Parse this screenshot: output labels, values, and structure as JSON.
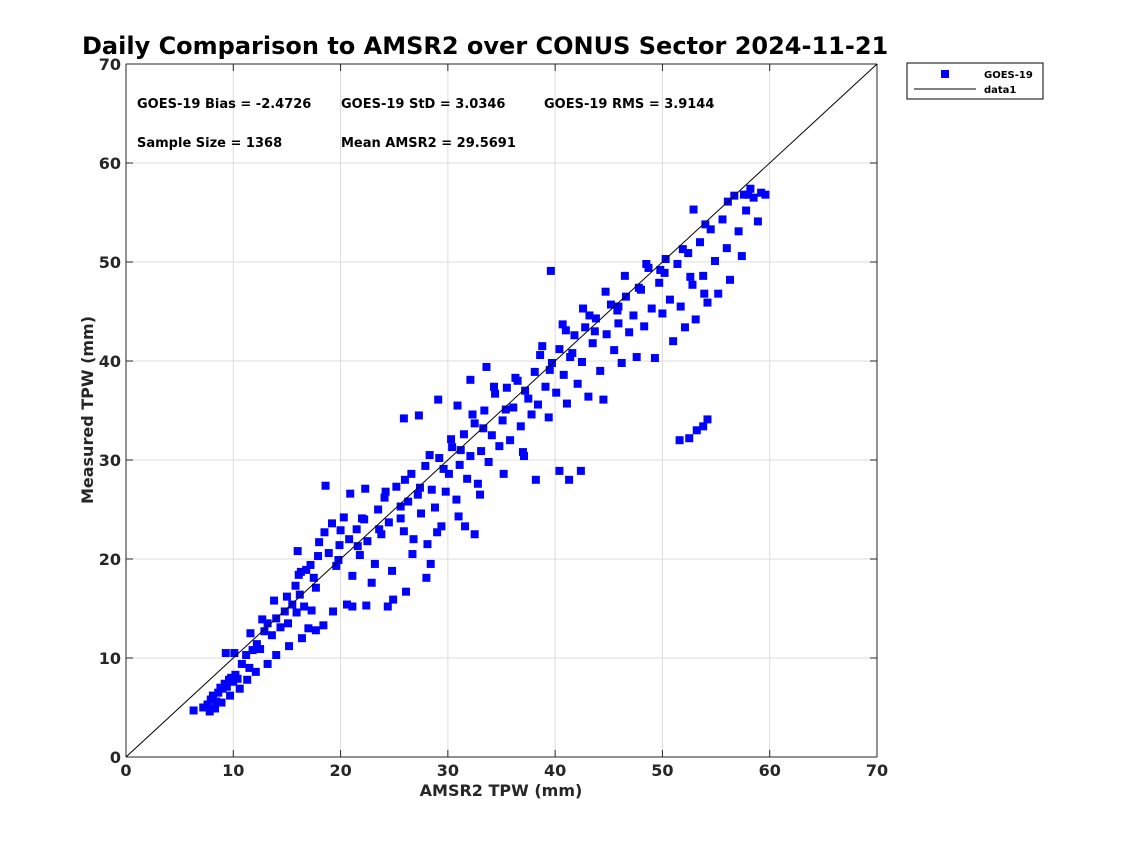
{
  "chart_data": {
    "type": "scatter",
    "title": "Daily Comparison to AMSR2 over CONUS Sector 2024-11-21",
    "xlabel": "AMSR2 TPW (mm)",
    "ylabel": "Measured TPW (mm)",
    "xlim": [
      0,
      70
    ],
    "ylim": [
      0,
      70
    ],
    "xticks": [
      "0",
      "10",
      "20",
      "30",
      "40",
      "50",
      "60",
      "70"
    ],
    "yticks": [
      "0",
      "10",
      "20",
      "30",
      "40",
      "50",
      "60",
      "70"
    ],
    "grid": true,
    "legend_position": "outside-top-right",
    "stats": {
      "bias": "GOES-19 Bias = -2.4726",
      "std": "GOES-19 StD = 3.0346",
      "rms": "GOES-19 RMS = 3.9144",
      "sample_size": "Sample Size = 1368",
      "mean": "Mean AMSR2 = 29.5691"
    },
    "series": [
      {
        "name": "GOES-19",
        "color": "#0000ff",
        "marker": "square",
        "points": [
          [
            6.3,
            4.7
          ],
          [
            7.2,
            5.0
          ],
          [
            7.6,
            5.3
          ],
          [
            7.9,
            5.8
          ],
          [
            8.1,
            6.2
          ],
          [
            8.4,
            5.6
          ],
          [
            8.6,
            6.5
          ],
          [
            8.8,
            7.0
          ],
          [
            9.0,
            6.9
          ],
          [
            9.2,
            7.4
          ],
          [
            9.4,
            7.1
          ],
          [
            9.6,
            7.8
          ],
          [
            9.8,
            8.0
          ],
          [
            10.0,
            7.6
          ],
          [
            10.2,
            8.3
          ],
          [
            10.4,
            7.9
          ],
          [
            9.3,
            10.5
          ],
          [
            10.1,
            10.5
          ],
          [
            10.8,
            9.4
          ],
          [
            11.2,
            10.3
          ],
          [
            11.5,
            9.0
          ],
          [
            11.8,
            10.8
          ],
          [
            12.2,
            11.4
          ],
          [
            12.5,
            10.9
          ],
          [
            12.9,
            12.7
          ],
          [
            13.2,
            13.5
          ],
          [
            13.6,
            12.3
          ],
          [
            14.0,
            14.0
          ],
          [
            14.4,
            13.1
          ],
          [
            14.8,
            14.7
          ],
          [
            15.1,
            13.5
          ],
          [
            15.5,
            15.4
          ],
          [
            15.9,
            14.6
          ],
          [
            16.2,
            16.4
          ],
          [
            16.6,
            15.2
          ],
          [
            17.0,
            13.0
          ],
          [
            17.3,
            14.8
          ],
          [
            16.0,
            20.8
          ],
          [
            16.3,
            18.7
          ],
          [
            16.8,
            18.9
          ],
          [
            17.2,
            19.4
          ],
          [
            17.7,
            17.1
          ],
          [
            18.0,
            21.7
          ],
          [
            18.5,
            22.7
          ],
          [
            18.6,
            27.4
          ],
          [
            18.9,
            20.6
          ],
          [
            19.2,
            23.6
          ],
          [
            19.6,
            19.3
          ],
          [
            19.9,
            21.4
          ],
          [
            20.3,
            24.2
          ],
          [
            20.6,
            15.4
          ],
          [
            20.8,
            22.0
          ],
          [
            21.1,
            18.3
          ],
          [
            21.5,
            23.0
          ],
          [
            21.8,
            20.4
          ],
          [
            22.2,
            24.0
          ],
          [
            22.5,
            21.8
          ],
          [
            22.9,
            17.6
          ],
          [
            23.2,
            19.5
          ],
          [
            23.5,
            25.0
          ],
          [
            23.8,
            22.5
          ],
          [
            24.2,
            26.8
          ],
          [
            24.5,
            23.7
          ],
          [
            24.9,
            15.9
          ],
          [
            25.2,
            27.3
          ],
          [
            25.6,
            24.1
          ],
          [
            25.9,
            22.8
          ],
          [
            26.3,
            25.8
          ],
          [
            26.6,
            28.6
          ],
          [
            26.8,
            22.0
          ],
          [
            27.2,
            26.5
          ],
          [
            27.5,
            24.6
          ],
          [
            27.9,
            29.4
          ],
          [
            28.1,
            21.5
          ],
          [
            28.5,
            27.0
          ],
          [
            28.8,
            25.2
          ],
          [
            29.2,
            30.2
          ],
          [
            29.4,
            23.3
          ],
          [
            29.8,
            26.8
          ],
          [
            30.1,
            28.6
          ],
          [
            30.4,
            31.3
          ],
          [
            30.8,
            26.0
          ],
          [
            31.1,
            29.5
          ],
          [
            31.5,
            32.6
          ],
          [
            31.8,
            28.1
          ],
          [
            32.1,
            30.4
          ],
          [
            32.5,
            33.7
          ],
          [
            32.8,
            27.6
          ],
          [
            33.1,
            30.9
          ],
          [
            33.4,
            35.0
          ],
          [
            33.8,
            29.8
          ],
          [
            34.1,
            32.5
          ],
          [
            34.4,
            36.7
          ],
          [
            34.8,
            31.4
          ],
          [
            35.1,
            34.0
          ],
          [
            35.5,
            37.3
          ],
          [
            35.8,
            32.0
          ],
          [
            36.1,
            35.3
          ],
          [
            36.5,
            38.0
          ],
          [
            36.8,
            33.4
          ],
          [
            37.1,
            30.4
          ],
          [
            37.5,
            36.2
          ],
          [
            37.8,
            34.6
          ],
          [
            38.1,
            38.9
          ],
          [
            38.4,
            35.6
          ],
          [
            38.8,
            41.5
          ],
          [
            39.1,
            37.4
          ],
          [
            39.4,
            34.3
          ],
          [
            39.7,
            39.8
          ],
          [
            40.1,
            36.8
          ],
          [
            40.4,
            41.2
          ],
          [
            40.8,
            38.6
          ],
          [
            41.1,
            35.7
          ],
          [
            41.4,
            40.4
          ],
          [
            41.8,
            42.6
          ],
          [
            42.1,
            37.7
          ],
          [
            42.5,
            39.9
          ],
          [
            42.8,
            43.4
          ],
          [
            43.1,
            36.4
          ],
          [
            43.5,
            41.8
          ],
          [
            43.8,
            44.3
          ],
          [
            44.2,
            39.0
          ],
          [
            44.5,
            36.1
          ],
          [
            44.8,
            42.7
          ],
          [
            45.2,
            45.7
          ],
          [
            45.5,
            41.1
          ],
          [
            45.9,
            43.8
          ],
          [
            46.2,
            39.8
          ],
          [
            46.6,
            46.5
          ],
          [
            46.9,
            42.9
          ],
          [
            47.3,
            44.6
          ],
          [
            47.6,
            40.4
          ],
          [
            48.0,
            47.2
          ],
          [
            48.3,
            43.5
          ],
          [
            48.7,
            49.4
          ],
          [
            49.0,
            45.3
          ],
          [
            49.3,
            40.3
          ],
          [
            49.7,
            47.9
          ],
          [
            50.0,
            44.8
          ],
          [
            50.3,
            50.3
          ],
          [
            50.7,
            46.2
          ],
          [
            51.0,
            42.0
          ],
          [
            51.4,
            49.8
          ],
          [
            51.7,
            45.5
          ],
          [
            52.1,
            43.4
          ],
          [
            52.4,
            50.9
          ],
          [
            52.8,
            47.7
          ],
          [
            53.1,
            44.2
          ],
          [
            53.5,
            52.0
          ],
          [
            53.8,
            48.6
          ],
          [
            54.2,
            45.9
          ],
          [
            54.5,
            53.3
          ],
          [
            54.9,
            50.1
          ],
          [
            55.2,
            46.8
          ],
          [
            55.6,
            54.3
          ],
          [
            56.0,
            51.4
          ],
          [
            56.3,
            48.2
          ],
          [
            56.7,
            56.7
          ],
          [
            57.1,
            53.1
          ],
          [
            57.4,
            50.6
          ],
          [
            57.8,
            55.2
          ],
          [
            58.2,
            57.4
          ],
          [
            58.5,
            56.5
          ],
          [
            58.9,
            54.1
          ],
          [
            59.2,
            57.0
          ],
          [
            59.6,
            56.8
          ],
          [
            57.6,
            56.8
          ],
          [
            58.0,
            56.8
          ],
          [
            50.2,
            48.9
          ],
          [
            52.6,
            48.5
          ],
          [
            53.9,
            46.8
          ],
          [
            39.6,
            49.1
          ],
          [
            52.9,
            55.3
          ],
          [
            51.6,
            32.0
          ],
          [
            52.5,
            32.2
          ],
          [
            53.2,
            33.0
          ],
          [
            53.8,
            33.4
          ],
          [
            54.2,
            34.1
          ],
          [
            40.4,
            28.9
          ],
          [
            41.3,
            28.0
          ],
          [
            42.4,
            28.9
          ],
          [
            38.2,
            28.0
          ],
          [
            32.5,
            22.5
          ],
          [
            31.6,
            23.3
          ],
          [
            28.4,
            19.5
          ],
          [
            28.0,
            18.1
          ],
          [
            26.1,
            16.7
          ],
          [
            24.4,
            15.2
          ],
          [
            22.4,
            15.3
          ],
          [
            21.1,
            15.2
          ],
          [
            19.3,
            14.7
          ],
          [
            18.4,
            13.3
          ],
          [
            17.7,
            12.8
          ],
          [
            16.4,
            12.0
          ],
          [
            15.2,
            11.2
          ],
          [
            14.0,
            10.3
          ],
          [
            13.2,
            9.4
          ],
          [
            12.1,
            8.6
          ],
          [
            11.3,
            7.8
          ],
          [
            10.6,
            6.9
          ],
          [
            9.7,
            6.2
          ],
          [
            8.9,
            5.5
          ],
          [
            8.3,
            4.9
          ],
          [
            7.8,
            4.6
          ],
          [
            15.8,
            17.3
          ],
          [
            17.5,
            18.1
          ],
          [
            19.8,
            19.9
          ],
          [
            21.6,
            21.3
          ],
          [
            23.6,
            23.0
          ],
          [
            25.6,
            25.3
          ],
          [
            27.4,
            27.2
          ],
          [
            29.6,
            29.1
          ],
          [
            31.2,
            31.0
          ],
          [
            33.3,
            33.2
          ],
          [
            35.4,
            35.1
          ],
          [
            37.2,
            37.0
          ],
          [
            39.5,
            39.1
          ],
          [
            41.6,
            40.8
          ],
          [
            43.7,
            43.0
          ],
          [
            45.8,
            45.1
          ],
          [
            47.8,
            47.4
          ],
          [
            49.8,
            49.2
          ],
          [
            51.9,
            51.3
          ],
          [
            54.0,
            53.8
          ],
          [
            56.1,
            56.1
          ],
          [
            24.8,
            18.8
          ],
          [
            26.7,
            20.5
          ],
          [
            29.0,
            22.7
          ],
          [
            31.0,
            24.3
          ],
          [
            33.0,
            26.5
          ],
          [
            35.2,
            28.6
          ],
          [
            37.0,
            30.8
          ],
          [
            13.8,
            15.8
          ],
          [
            15.0,
            16.2
          ],
          [
            16.1,
            18.4
          ],
          [
            17.9,
            20.3
          ],
          [
            20.0,
            22.9
          ],
          [
            22.0,
            24.1
          ],
          [
            24.1,
            26.2
          ],
          [
            26.0,
            28.0
          ],
          [
            28.3,
            30.5
          ],
          [
            30.3,
            32.1
          ],
          [
            32.3,
            34.6
          ],
          [
            34.3,
            37.4
          ],
          [
            36.3,
            38.3
          ],
          [
            38.6,
            40.6
          ],
          [
            40.7,
            43.7
          ],
          [
            42.6,
            45.3
          ],
          [
            44.7,
            47.0
          ],
          [
            46.5,
            48.6
          ],
          [
            48.5,
            49.8
          ],
          [
            30.9,
            35.5
          ],
          [
            29.1,
            36.1
          ],
          [
            27.3,
            34.5
          ],
          [
            25.9,
            34.2
          ],
          [
            33.6,
            39.4
          ],
          [
            32.1,
            38.1
          ],
          [
            41.0,
            43.1
          ],
          [
            43.2,
            44.6
          ],
          [
            45.9,
            45.5
          ],
          [
            20.9,
            26.6
          ],
          [
            22.3,
            27.1
          ],
          [
            12.7,
            13.9
          ],
          [
            11.6,
            12.5
          ]
        ]
      },
      {
        "name": "data1",
        "color": "#000000",
        "type": "line",
        "x": [
          0,
          70
        ],
        "y": [
          0,
          70
        ]
      }
    ]
  }
}
